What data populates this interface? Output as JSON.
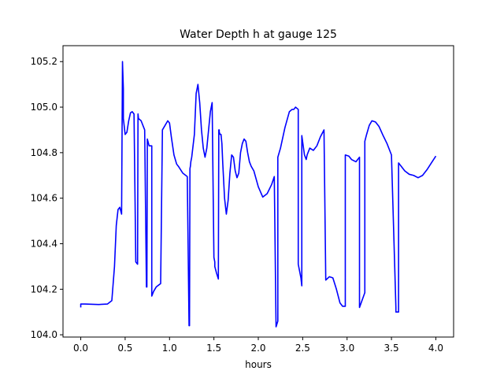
{
  "chart_data": {
    "type": "line",
    "title": "Water Depth h at gauge 125",
    "xlabel": "hours",
    "ylabel": "",
    "xlim": [
      -0.2,
      4.2
    ],
    "ylim": [
      103.99,
      105.27
    ],
    "xticks": [
      0.0,
      0.5,
      1.0,
      1.5,
      2.0,
      2.5,
      3.0,
      3.5,
      4.0
    ],
    "xtick_labels": [
      "0.0",
      "0.5",
      "1.0",
      "1.5",
      "2.0",
      "2.5",
      "3.0",
      "3.5",
      "4.0"
    ],
    "yticks": [
      104.0,
      104.2,
      104.4,
      104.6,
      104.8,
      105.0,
      105.2
    ],
    "ytick_labels": [
      "104.0",
      "104.2",
      "104.4",
      "104.6",
      "104.8",
      "105.0",
      "105.2"
    ],
    "grid": false,
    "legend": "none",
    "series": [
      {
        "color": "#0000ff",
        "x": [
          0.0,
          0.0,
          0.05,
          0.2,
          0.3,
          0.35,
          0.38,
          0.4,
          0.42,
          0.44,
          0.46,
          0.47,
          0.48,
          0.48,
          0.5,
          0.52,
          0.54,
          0.56,
          0.58,
          0.6,
          0.62,
          0.64,
          0.645,
          0.65,
          0.65,
          0.68,
          0.7,
          0.72,
          0.74,
          0.745,
          0.75,
          0.75,
          0.77,
          0.78,
          0.8,
          0.8,
          0.82,
          0.85,
          0.9,
          0.92,
          0.92,
          0.95,
          0.98,
          1.0,
          1.02,
          1.05,
          1.08,
          1.1,
          1.15,
          1.2,
          1.22,
          1.225,
          1.23,
          1.235,
          1.24,
          1.25,
          1.28,
          1.3,
          1.32,
          1.34,
          1.36,
          1.38,
          1.4,
          1.42,
          1.44,
          1.46,
          1.48,
          1.5,
          1.5,
          1.51,
          1.51,
          1.53,
          1.55,
          1.555,
          1.56,
          1.56,
          1.57,
          1.58,
          1.59,
          1.6,
          1.62,
          1.64,
          1.66,
          1.68,
          1.7,
          1.72,
          1.74,
          1.76,
          1.78,
          1.8,
          1.82,
          1.84,
          1.86,
          1.88,
          1.9,
          1.92,
          1.95,
          2.0,
          2.05,
          2.1,
          2.15,
          2.18,
          2.2,
          2.2,
          2.22,
          2.22,
          2.25,
          2.3,
          2.35,
          2.38,
          2.4,
          2.42,
          2.45,
          2.45,
          2.48,
          2.49,
          2.49,
          2.52,
          2.54,
          2.55,
          2.58,
          2.62,
          2.66,
          2.7,
          2.74,
          2.76,
          2.76,
          2.8,
          2.84,
          2.88,
          2.92,
          2.95,
          2.98,
          2.98,
          3.02,
          3.05,
          3.1,
          3.14,
          3.14,
          3.14,
          3.2,
          3.2,
          3.22,
          3.25,
          3.28,
          3.32,
          3.36,
          3.4,
          3.45,
          3.5,
          3.55,
          3.55,
          3.58,
          3.58,
          3.6,
          3.65,
          3.7,
          3.75,
          3.8,
          3.85,
          3.9,
          3.95,
          4.0
        ],
        "y": [
          104.12,
          104.135,
          104.135,
          104.133,
          104.135,
          104.15,
          104.3,
          104.48,
          104.55,
          104.56,
          104.53,
          105.2,
          105.08,
          104.95,
          104.88,
          104.89,
          104.94,
          104.975,
          104.98,
          104.97,
          104.32,
          104.31,
          104.97,
          104.95,
          104.95,
          104.94,
          104.92,
          104.9,
          104.21,
          104.21,
          104.86,
          104.86,
          104.83,
          104.83,
          104.83,
          104.17,
          104.19,
          104.21,
          104.225,
          104.9,
          104.9,
          104.92,
          104.94,
          104.93,
          104.87,
          104.79,
          104.75,
          104.74,
          104.71,
          104.695,
          104.04,
          104.04,
          104.73,
          104.74,
          104.76,
          104.78,
          104.88,
          105.06,
          105.1,
          105.02,
          104.9,
          104.82,
          104.78,
          104.82,
          104.9,
          104.98,
          105.02,
          104.34,
          104.34,
          104.32,
          104.3,
          104.27,
          104.245,
          104.9,
          104.9,
          104.89,
          104.88,
          104.88,
          104.84,
          104.75,
          104.6,
          104.53,
          104.59,
          104.71,
          104.79,
          104.78,
          104.72,
          104.69,
          104.71,
          104.8,
          104.84,
          104.86,
          104.85,
          104.8,
          104.76,
          104.74,
          104.72,
          104.65,
          104.605,
          104.62,
          104.66,
          104.695,
          104.035,
          104.035,
          104.06,
          104.78,
          104.82,
          104.91,
          104.98,
          104.99,
          104.99,
          105.0,
          104.99,
          104.31,
          104.25,
          104.215,
          104.875,
          104.79,
          104.77,
          104.79,
          104.82,
          104.81,
          104.83,
          104.87,
          104.9,
          104.24,
          104.24,
          104.255,
          104.25,
          104.2,
          104.14,
          104.125,
          104.125,
          104.79,
          104.785,
          104.77,
          104.76,
          104.78,
          104.12,
          104.12,
          104.185,
          104.85,
          104.88,
          104.92,
          104.94,
          104.935,
          104.915,
          104.88,
          104.84,
          104.79,
          104.12,
          104.1,
          104.1,
          104.755,
          104.745,
          104.72,
          104.705,
          104.7,
          104.69,
          104.7,
          104.725,
          104.755,
          104.785
        ]
      }
    ]
  }
}
